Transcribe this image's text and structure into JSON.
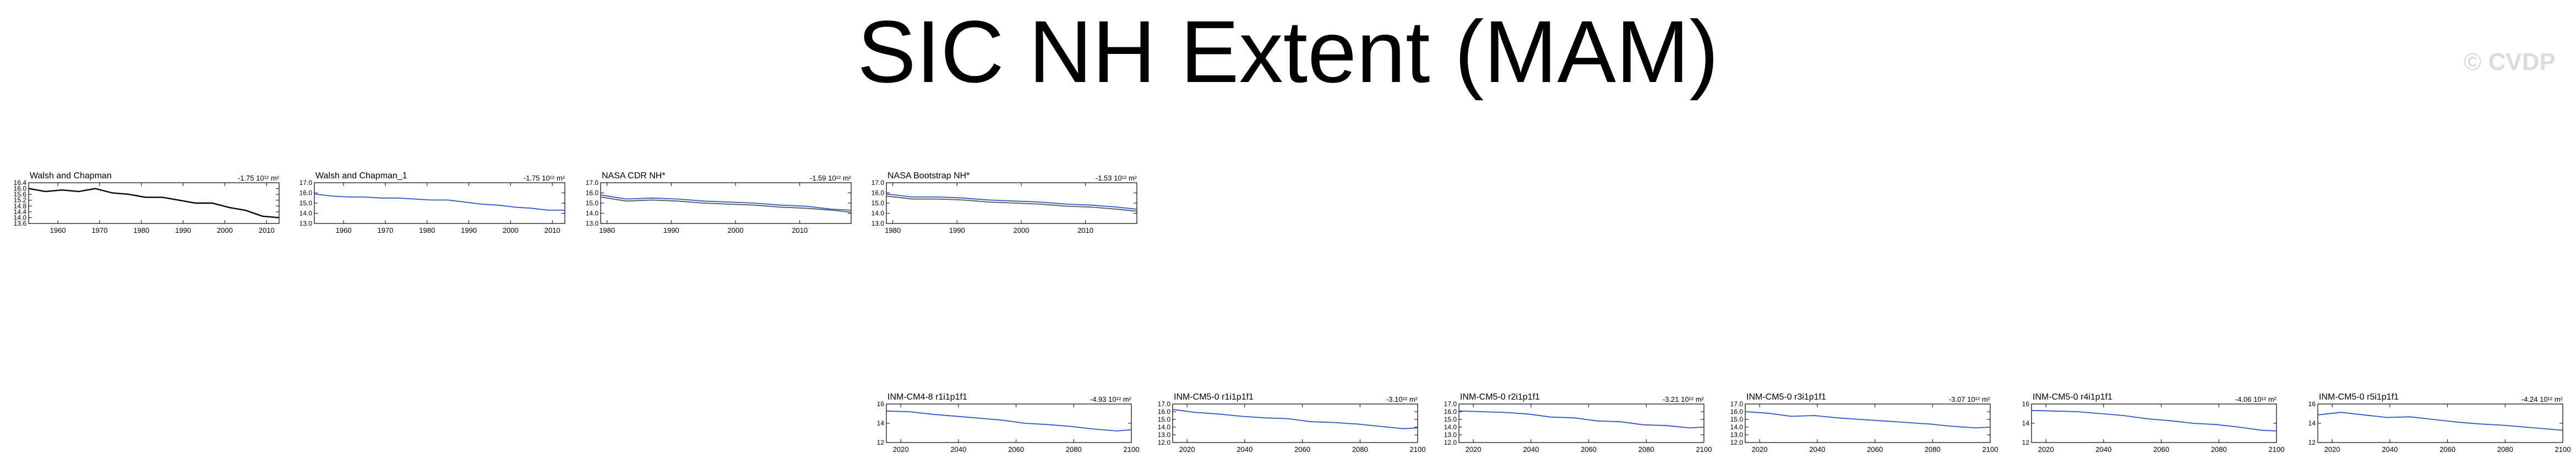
{
  "title": "SIC NH Extent (MAM)",
  "watermark": "© CVDP",
  "charts": [
    {
      "name": "Walsh and Chapman",
      "trend": "-1.75 10¹² m²",
      "y_ticks": [
        "16.4",
        "16.0",
        "15.6",
        "15.2",
        "14.8",
        "14.4",
        "14.0",
        "13.6"
      ],
      "x_ticks": [
        "1960",
        "1970",
        "1980",
        "1990",
        "2000",
        "2010"
      ]
    },
    {
      "name": "Walsh and Chapman_1",
      "trend": "-1.75 10¹² m²",
      "y_ticks": [
        "17.0",
        "16.0",
        "15.0",
        "14.0",
        "13.0"
      ],
      "x_ticks": [
        "1960",
        "1970",
        "1980",
        "1990",
        "2000",
        "2010"
      ]
    },
    {
      "name": "NASA CDR NH*",
      "trend": "-1.59 10¹² m²",
      "y_ticks": [
        "17.0",
        "16.0",
        "15.0",
        "14.0",
        "13.0"
      ],
      "x_ticks": [
        "1980",
        "1990",
        "2000",
        "2010"
      ]
    },
    {
      "name": "NASA Bootstrap NH*",
      "trend": "-1.53 10¹² m²",
      "y_ticks": [
        "17.0",
        "16.0",
        "15.0",
        "14.0",
        "13.0"
      ],
      "x_ticks": [
        "1980",
        "1990",
        "2000",
        "2010"
      ]
    },
    {
      "name": "INM-CM4-8 r1i1p1f1",
      "trend": "-4.93 10¹² m²",
      "y_ticks": [
        "16",
        "14",
        "12"
      ],
      "x_ticks": [
        "2020",
        "2040",
        "2060",
        "2080",
        "2100"
      ]
    },
    {
      "name": "INM-CM5-0 r1i1p1f1",
      "trend": "-3.10¹² m²",
      "y_ticks": [
        "17.0",
        "16.0",
        "15.0",
        "14.0",
        "13.0",
        "12.0"
      ],
      "x_ticks": [
        "2020",
        "2040",
        "2060",
        "2080",
        "2100"
      ]
    },
    {
      "name": "INM-CM5-0 r2i1p1f1",
      "trend": "-3.21 10¹² m²",
      "y_ticks": [
        "17.0",
        "16.0",
        "15.0",
        "14.0",
        "13.0",
        "12.0"
      ],
      "x_ticks": [
        "2020",
        "2040",
        "2060",
        "2080",
        "2100"
      ]
    },
    {
      "name": "INM-CM5-0 r3i1p1f1",
      "trend": "-3.07 10¹² m²",
      "y_ticks": [
        "17.0",
        "16.0",
        "15.0",
        "14.0",
        "13.0",
        "12.0"
      ],
      "x_ticks": [
        "2020",
        "2040",
        "2060",
        "2080",
        "2100"
      ]
    },
    {
      "name": "INM-CM5-0 r4i1p1f1",
      "trend": "-4.06 10¹² m²",
      "y_ticks": [
        "16",
        "14",
        "12"
      ],
      "x_ticks": [
        "2020",
        "2040",
        "2060",
        "2080",
        "2100"
      ]
    },
    {
      "name": "INM-CM5-0 r5i1p1f1",
      "trend": "-4.24 10¹² m²",
      "y_ticks": [
        "16",
        "14",
        "12"
      ],
      "x_ticks": [
        "2020",
        "2040",
        "2060",
        "2080",
        "2100"
      ]
    }
  ],
  "chart_data": [
    {
      "type": "line",
      "title": "Walsh and Chapman",
      "ylim": [
        13.6,
        16.4
      ],
      "xlim": [
        1953,
        2013
      ],
      "series": [
        {
          "color": "#000000",
          "x": [
            1953,
            1957,
            1961,
            1965,
            1969,
            1973,
            1977,
            1981,
            1985,
            1989,
            1993,
            1997,
            2001,
            2005,
            2009,
            2013
          ],
          "values": [
            16.0,
            15.8,
            15.9,
            15.8,
            16.0,
            15.7,
            15.6,
            15.4,
            15.4,
            15.2,
            15.0,
            15.0,
            14.7,
            14.5,
            14.1,
            14.0
          ]
        }
      ]
    },
    {
      "type": "line",
      "title": "Walsh and Chapman_1",
      "ylim": [
        13.0,
        17.0
      ],
      "xlim": [
        1953,
        2013
      ],
      "series": [
        {
          "color": "#3355cc",
          "x": [
            1953,
            1957,
            1961,
            1965,
            1969,
            1973,
            1977,
            1981,
            1985,
            1989,
            1993,
            1997,
            2001,
            2005,
            2009,
            2013
          ],
          "values": [
            15.9,
            15.7,
            15.6,
            15.6,
            15.5,
            15.5,
            15.4,
            15.3,
            15.3,
            15.1,
            14.9,
            14.8,
            14.6,
            14.5,
            14.3,
            14.3
          ]
        }
      ]
    },
    {
      "type": "line",
      "title": "NASA CDR NH*",
      "ylim": [
        13.0,
        17.0
      ],
      "xlim": [
        1979,
        2018
      ],
      "series": [
        {
          "color": "#3355cc",
          "x": [
            1979,
            1983,
            1987,
            1991,
            1995,
            1999,
            2003,
            2007,
            2011,
            2015,
            2018
          ],
          "values": [
            15.8,
            15.4,
            15.5,
            15.4,
            15.2,
            15.1,
            15.0,
            14.8,
            14.7,
            14.4,
            14.3
          ]
        },
        {
          "color": "#555555",
          "x": [
            1979,
            1983,
            1987,
            1991,
            1995,
            1999,
            2003,
            2007,
            2011,
            2015,
            2018
          ],
          "values": [
            15.6,
            15.2,
            15.3,
            15.2,
            15.0,
            14.9,
            14.8,
            14.6,
            14.5,
            14.3,
            14.1
          ]
        }
      ]
    },
    {
      "type": "line",
      "title": "NASA Bootstrap NH*",
      "ylim": [
        13.0,
        17.0
      ],
      "xlim": [
        1979,
        2018
      ],
      "series": [
        {
          "color": "#3355cc",
          "x": [
            1979,
            1983,
            1987,
            1991,
            1995,
            1999,
            2003,
            2007,
            2011,
            2015,
            2018
          ],
          "values": [
            15.9,
            15.6,
            15.6,
            15.5,
            15.3,
            15.2,
            15.1,
            14.9,
            14.8,
            14.6,
            14.4
          ]
        },
        {
          "color": "#555555",
          "x": [
            1979,
            1983,
            1987,
            1991,
            1995,
            1999,
            2003,
            2007,
            2011,
            2015,
            2018
          ],
          "values": [
            15.7,
            15.4,
            15.4,
            15.3,
            15.1,
            15.0,
            14.9,
            14.7,
            14.6,
            14.4,
            14.2
          ]
        }
      ]
    },
    {
      "type": "line",
      "title": "INM-CM4-8 r1i1p1f1",
      "ylim": [
        11.5,
        17.5
      ],
      "xlim": [
        2015,
        2100
      ],
      "series": [
        {
          "color": "#3355cc",
          "x": [
            2015,
            2023,
            2031,
            2039,
            2047,
            2055,
            2063,
            2071,
            2079,
            2087,
            2095,
            2100
          ],
          "values": [
            16.4,
            16.3,
            15.9,
            15.6,
            15.3,
            15.0,
            14.5,
            14.3,
            14.0,
            13.6,
            13.3,
            13.5
          ]
        }
      ]
    },
    {
      "type": "line",
      "title": "INM-CM5-0 r1i1p1f1",
      "ylim": [
        12.0,
        17.0
      ],
      "xlim": [
        2015,
        2100
      ],
      "series": [
        {
          "color": "#3355cc",
          "x": [
            2015,
            2023,
            2031,
            2039,
            2047,
            2055,
            2063,
            2071,
            2079,
            2087,
            2095,
            2100
          ],
          "values": [
            16.3,
            15.9,
            15.7,
            15.4,
            15.2,
            15.1,
            14.7,
            14.6,
            14.4,
            14.1,
            13.8,
            13.9
          ]
        }
      ]
    },
    {
      "type": "line",
      "title": "INM-CM5-0 r2i1p1f1",
      "ylim": [
        12.0,
        17.0
      ],
      "xlim": [
        2015,
        2100
      ],
      "series": [
        {
          "color": "#3355cc",
          "x": [
            2015,
            2023,
            2031,
            2039,
            2047,
            2055,
            2063,
            2071,
            2079,
            2087,
            2095,
            2100
          ],
          "values": [
            16.1,
            16.0,
            15.9,
            15.7,
            15.3,
            15.2,
            14.8,
            14.7,
            14.3,
            14.2,
            13.9,
            14.0
          ]
        }
      ]
    },
    {
      "type": "line",
      "title": "INM-CM5-0 r3i1p1f1",
      "ylim": [
        12.0,
        17.0
      ],
      "xlim": [
        2015,
        2100
      ],
      "series": [
        {
          "color": "#3355cc",
          "x": [
            2015,
            2023,
            2031,
            2039,
            2047,
            2055,
            2063,
            2071,
            2079,
            2087,
            2095,
            2100
          ],
          "values": [
            16.0,
            15.8,
            15.4,
            15.5,
            15.2,
            15.0,
            14.8,
            14.6,
            14.4,
            14.1,
            13.9,
            14.0
          ]
        }
      ]
    },
    {
      "type": "line",
      "title": "INM-CM5-0 r4i1p1f1",
      "ylim": [
        11.5,
        17.5
      ],
      "xlim": [
        2015,
        2100
      ],
      "series": [
        {
          "color": "#3355cc",
          "x": [
            2015,
            2023,
            2031,
            2039,
            2047,
            2055,
            2063,
            2071,
            2079,
            2087,
            2095,
            2100
          ],
          "values": [
            16.5,
            16.4,
            16.3,
            16.0,
            15.7,
            15.2,
            14.9,
            14.5,
            14.3,
            13.9,
            13.4,
            13.3
          ]
        }
      ]
    },
    {
      "type": "line",
      "title": "INM-CM5-0 r5i1p1f1",
      "ylim": [
        11.5,
        17.5
      ],
      "xlim": [
        2015,
        2100
      ],
      "series": [
        {
          "color": "#3355cc",
          "x": [
            2015,
            2023,
            2031,
            2039,
            2047,
            2055,
            2063,
            2071,
            2079,
            2087,
            2095,
            2100
          ],
          "values": [
            15.8,
            16.2,
            15.8,
            15.4,
            15.5,
            15.1,
            14.7,
            14.4,
            14.2,
            13.9,
            13.6,
            13.4
          ]
        }
      ]
    }
  ]
}
